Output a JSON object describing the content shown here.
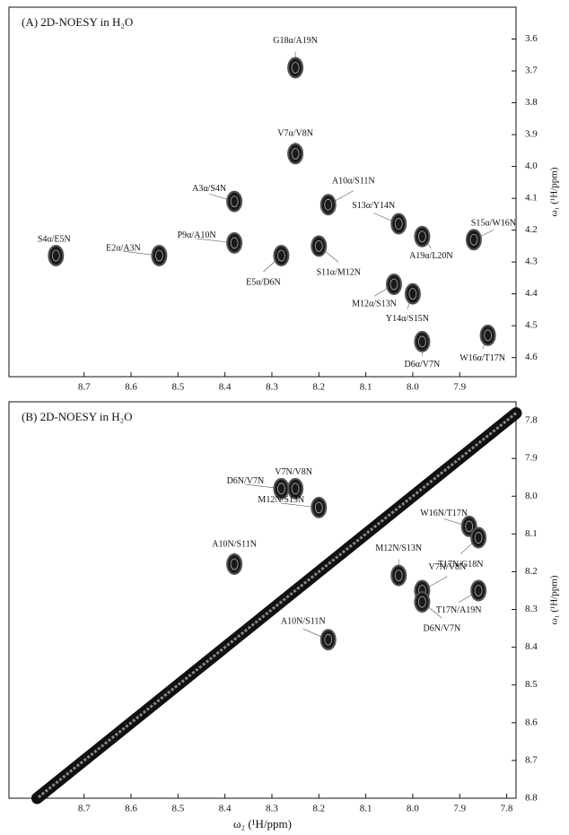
{
  "chart_data": [
    {
      "type": "scatter",
      "title": "(A) 2D-NOESY in H₂O",
      "y_label": "ω₁ (¹H/ppm)",
      "color": "#1a1a1a",
      "xlim": [
        8.86,
        7.78
      ],
      "ylim": [
        3.5,
        4.66
      ],
      "xticks": [
        8.7,
        8.6,
        8.5,
        8.4,
        8.3,
        8.2,
        8.1,
        {
          "value": 8,
          "label": "8.0"
        },
        7.9
      ],
      "yticks": [
        3.6,
        3.7,
        3.8,
        3.9,
        {
          "value": 4,
          "label": "4.0"
        },
        4.1,
        4.2,
        4.3,
        4.4,
        4.5,
        4.6
      ],
      "labels": [
        "S4α/E5N",
        "E2α/A3N",
        "P9α/A10N",
        "A3α/S4N",
        "E5α/D6N",
        "V7α/V8N",
        "G18α/A19N",
        "A10α/S11N",
        "S11α/M12N",
        "M12α/S13N",
        "S13α/Y14N",
        "Y14α/S15N",
        "D6α/V7N",
        "A19α/L20N",
        "S15α/W16N",
        "W16α/T17N"
      ],
      "x": [
        8.76,
        8.54,
        8.38,
        8.38,
        8.28,
        8.25,
        8.25,
        8.18,
        8.2,
        8.04,
        8.03,
        8.0,
        7.98,
        7.98,
        7.87,
        7.84
      ],
      "values": [
        4.28,
        4.28,
        4.24,
        4.11,
        4.28,
        3.96,
        3.69,
        4.12,
        4.25,
        4.37,
        4.18,
        4.4,
        4.55,
        4.22,
        4.23,
        4.53
      ]
    },
    {
      "type": "scatter",
      "title": "(B) 2D-NOESY in H₂O",
      "x_label": "ω₂ (¹H/ppm)",
      "y_label": "ω₁ (¹H/ppm)",
      "color": "#1a1a1a",
      "diagonal": true,
      "xlim": [
        8.86,
        7.78
      ],
      "ylim": [
        7.75,
        8.8
      ],
      "xticks": [
        8.7,
        8.6,
        8.5,
        8.4,
        8.3,
        8.2,
        8.1,
        {
          "value": 8,
          "label": "8.0"
        },
        7.9,
        7.8
      ],
      "yticks": [
        7.8,
        7.9,
        {
          "value": 8,
          "label": "8.0"
        },
        8.1,
        8.2,
        8.3,
        8.4,
        8.5,
        8.6,
        8.7,
        8.8
      ],
      "labels": [
        "V7N/V8N",
        "D6N/V7N",
        "M12N/S13N",
        "W16N/T17N",
        "T17N/G18N",
        "A10N/S11N",
        "M12N/S13N",
        "V7N/V8N",
        "D6N/V7N",
        "T17N/A19N",
        "A10N/S11N"
      ],
      "x": [
        8.25,
        8.28,
        8.2,
        7.88,
        7.86,
        8.38,
        8.03,
        7.98,
        7.98,
        7.86,
        8.18
      ],
      "values": [
        7.98,
        7.98,
        8.03,
        8.08,
        8.11,
        8.18,
        8.21,
        8.25,
        8.28,
        8.25,
        8.38
      ]
    }
  ]
}
